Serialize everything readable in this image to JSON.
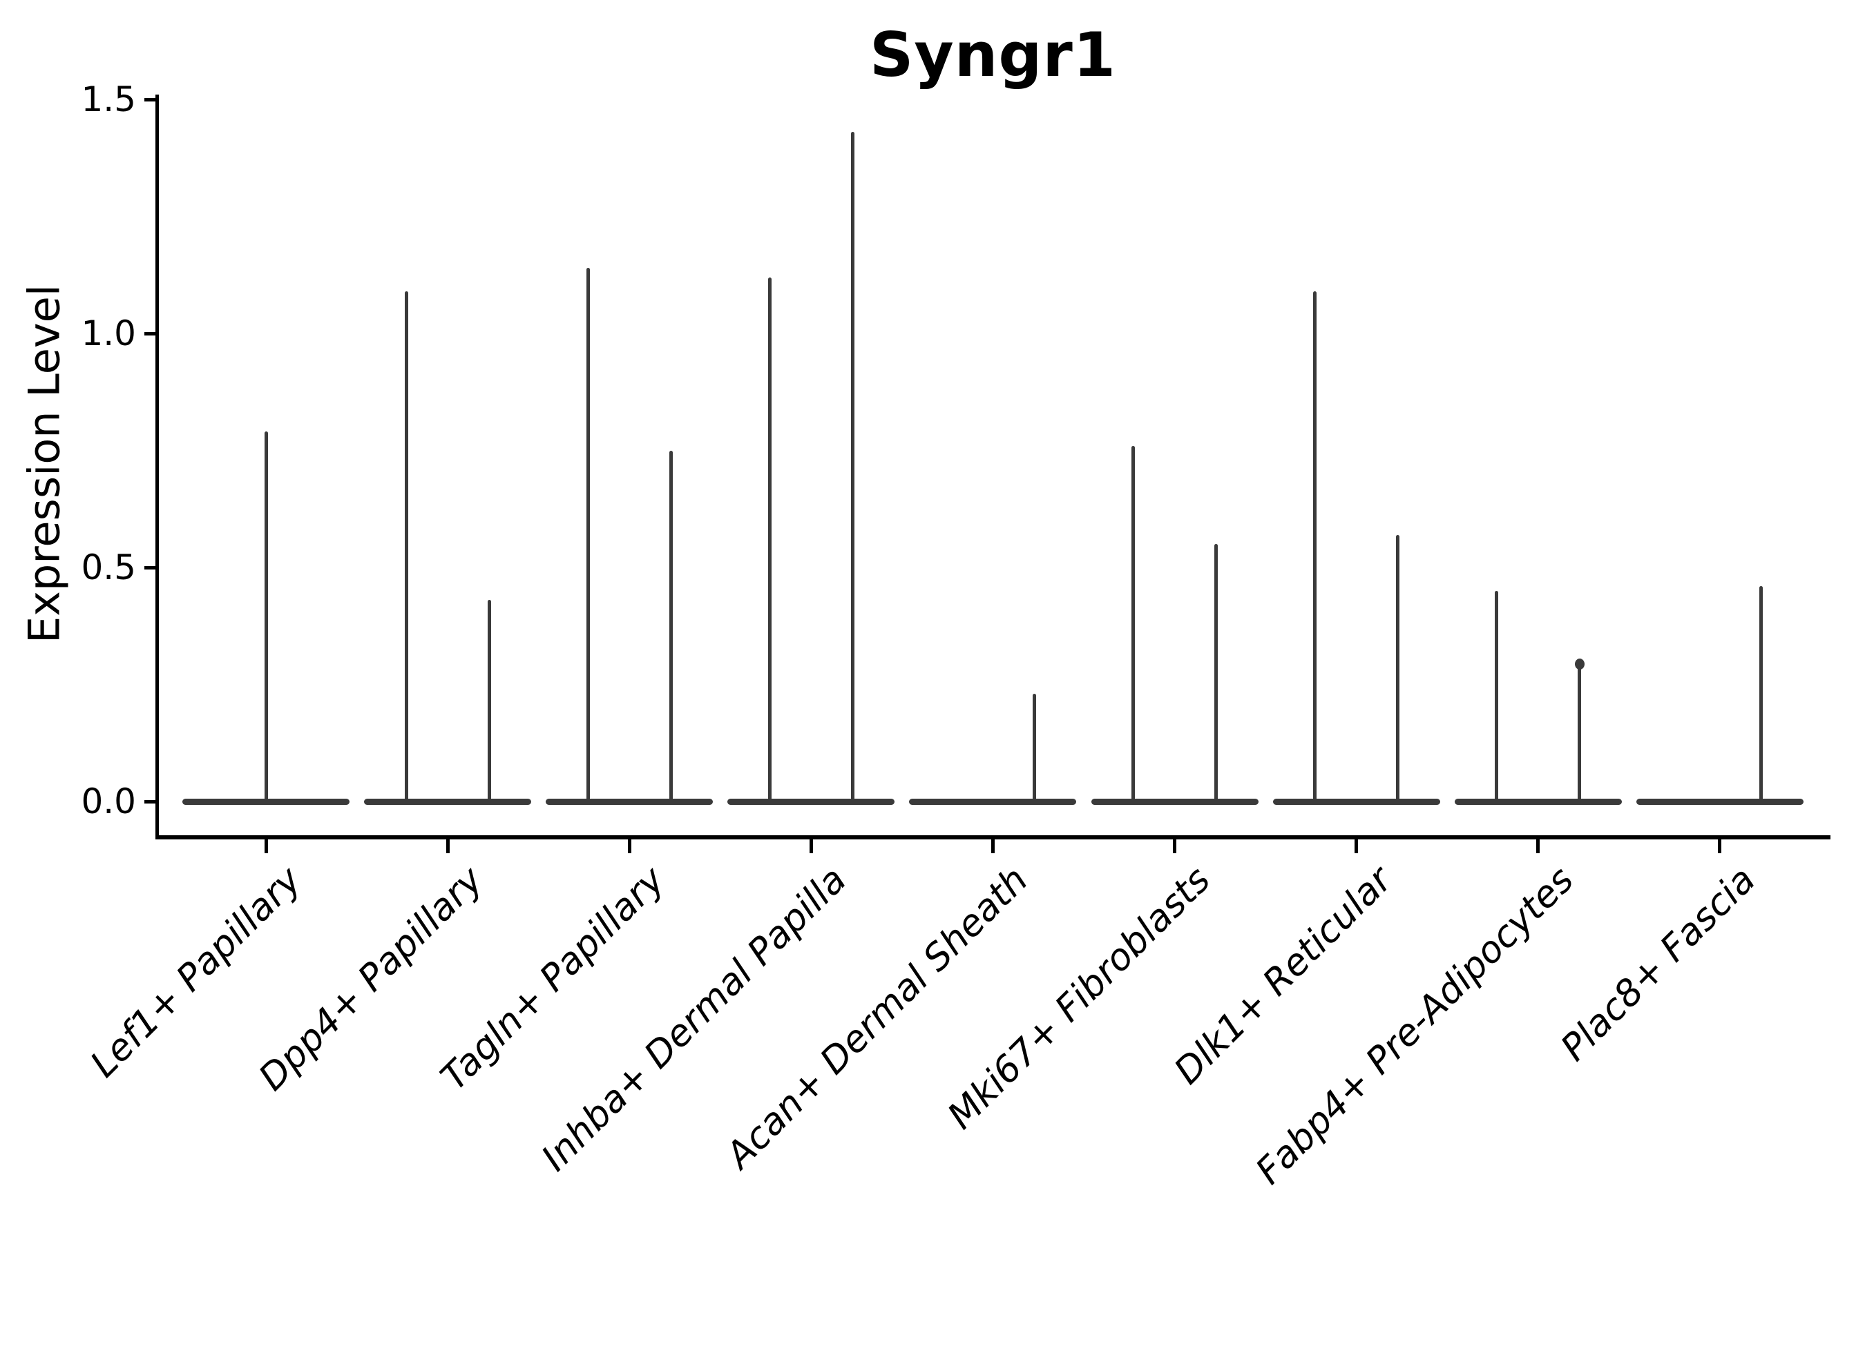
{
  "figure": {
    "title": "Syngr1",
    "y_axis_label": "Expression Level"
  },
  "chart_data": {
    "type": "violin",
    "title": "Syngr1",
    "xlabel": "",
    "ylabel": "Expression Level",
    "ylim": [
      -0.07,
      1.5
    ],
    "ytick_labels": [
      "0.0",
      "0.5",
      "1.0",
      "1.5"
    ],
    "ytick_values": [
      0.0,
      0.5,
      1.0,
      1.5
    ],
    "grid": false,
    "legend": "none",
    "violin_color": "#3a3a3a",
    "axis_color": "#000000",
    "baseline_value": 0.0,
    "categories": [
      "Lef1+ Papillary",
      "Dpp4+ Papillary",
      "Tagln+ Papillary",
      "Inhba+ Dermal Papilla",
      "Acan+ Dermal Sheath",
      "Mki67+ Fibroblasts",
      "Dlk1+ Reticular",
      "Fabp4+ Pre-Adipocytes",
      "Plac8+ Fascia"
    ],
    "violins": [
      {
        "category": "Lef1+ Papillary",
        "spikes": [
          {
            "position": "center",
            "max": 0.79
          }
        ]
      },
      {
        "category": "Dpp4+ Papillary",
        "spikes": [
          {
            "position": "left",
            "max": 1.09
          },
          {
            "position": "right",
            "max": 0.43
          }
        ]
      },
      {
        "category": "Tagln+ Papillary",
        "spikes": [
          {
            "position": "left",
            "max": 1.14
          },
          {
            "position": "right",
            "max": 0.75
          }
        ]
      },
      {
        "category": "Inhba+ Dermal Papilla",
        "spikes": [
          {
            "position": "left",
            "max": 1.12
          },
          {
            "position": "right",
            "max": 1.43
          }
        ]
      },
      {
        "category": "Acan+ Dermal Sheath",
        "spikes": [
          {
            "position": "right",
            "max": 0.23
          }
        ]
      },
      {
        "category": "Mki67+ Fibroblasts",
        "spikes": [
          {
            "position": "left",
            "max": 0.76
          },
          {
            "position": "right",
            "max": 0.55
          }
        ]
      },
      {
        "category": "Dlk1+ Reticular",
        "spikes": [
          {
            "position": "left",
            "max": 1.09
          },
          {
            "position": "right",
            "max": 0.57
          }
        ]
      },
      {
        "category": "Fabp4+ Pre-Adipocytes",
        "spikes": [
          {
            "position": "left",
            "max": 0.45
          },
          {
            "position": "right",
            "max": 0.3,
            "cap_dot": true
          }
        ]
      },
      {
        "category": "Plac8+ Fascia",
        "spikes": [
          {
            "position": "right",
            "max": 0.46
          }
        ]
      }
    ]
  }
}
